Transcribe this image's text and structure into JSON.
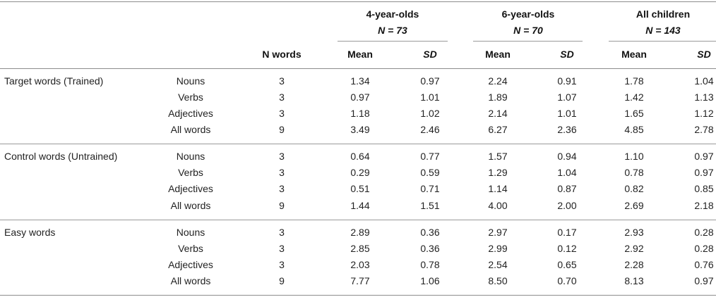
{
  "header": {
    "n_words": "N words",
    "groups": [
      {
        "title": "4-year-olds",
        "n": "N = 73",
        "mean": "Mean",
        "sd": "SD"
      },
      {
        "title": "6-year-olds",
        "n": "N = 70",
        "mean": "Mean",
        "sd": "SD"
      },
      {
        "title": "All children",
        "n": "N = 143",
        "mean": "Mean",
        "sd": "SD"
      }
    ]
  },
  "sections": [
    {
      "label": "Target words (Trained)",
      "rows": [
        {
          "type": "Nouns",
          "n": "3",
          "cells": [
            "1.34",
            "0.97",
            "2.24",
            "0.91",
            "1.78",
            "1.04"
          ]
        },
        {
          "type": "Verbs",
          "n": "3",
          "cells": [
            "0.97",
            "1.01",
            "1.89",
            "1.07",
            "1.42",
            "1.13"
          ]
        },
        {
          "type": "Adjectives",
          "n": "3",
          "cells": [
            "1.18",
            "1.02",
            "2.14",
            "1.01",
            "1.65",
            "1.12"
          ]
        },
        {
          "type": "All words",
          "n": "9",
          "cells": [
            "3.49",
            "2.46",
            "6.27",
            "2.36",
            "4.85",
            "2.78"
          ]
        }
      ]
    },
    {
      "label": "Control words (Untrained)",
      "rows": [
        {
          "type": "Nouns",
          "n": "3",
          "cells": [
            "0.64",
            "0.77",
            "1.57",
            "0.94",
            "1.10",
            "0.97"
          ]
        },
        {
          "type": "Verbs",
          "n": "3",
          "cells": [
            "0.29",
            "0.59",
            "1.29",
            "1.04",
            "0.78",
            "0.97"
          ]
        },
        {
          "type": "Adjectives",
          "n": "3",
          "cells": [
            "0.51",
            "0.71",
            "1.14",
            "0.87",
            "0.82",
            "0.85"
          ]
        },
        {
          "type": "All words",
          "n": "9",
          "cells": [
            "1.44",
            "1.51",
            "4.00",
            "2.00",
            "2.69",
            "2.18"
          ]
        }
      ]
    },
    {
      "label": "Easy words",
      "rows": [
        {
          "type": "Nouns",
          "n": "3",
          "cells": [
            "2.89",
            "0.36",
            "2.97",
            "0.17",
            "2.93",
            "0.28"
          ]
        },
        {
          "type": "Verbs",
          "n": "3",
          "cells": [
            "2.85",
            "0.36",
            "2.99",
            "0.12",
            "2.92",
            "0.28"
          ]
        },
        {
          "type": "Adjectives",
          "n": "3",
          "cells": [
            "2.03",
            "0.78",
            "2.54",
            "0.65",
            "2.28",
            "0.76"
          ]
        },
        {
          "type": "All words",
          "n": "9",
          "cells": [
            "7.77",
            "1.06",
            "8.50",
            "0.70",
            "8.13",
            "0.97"
          ]
        }
      ]
    }
  ]
}
